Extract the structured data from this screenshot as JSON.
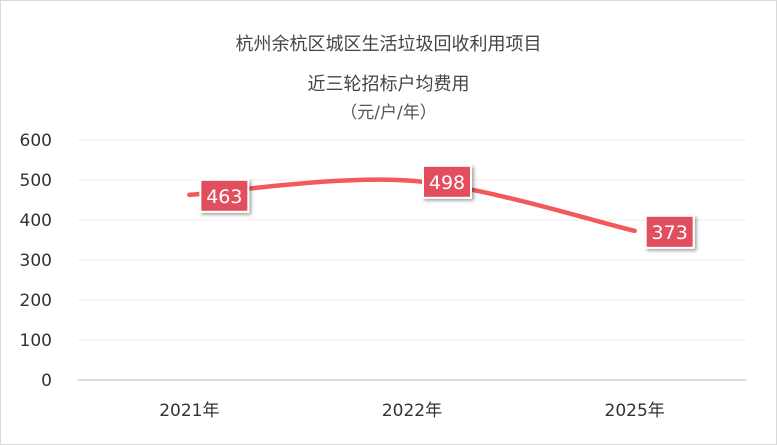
{
  "chart_data": {
    "type": "line",
    "title_lines": [
      "杭州余杭区城区生活垃圾回收利用项目",
      "近三轮招标户均费用",
      "（元/户/年）"
    ],
    "categories": [
      "2021年",
      "2022年",
      "2025年"
    ],
    "values": [
      463,
      498,
      373
    ],
    "data_labels": [
      "463",
      "498",
      "373"
    ],
    "ylim": [
      0,
      600
    ],
    "yticks": [
      0,
      100,
      200,
      300,
      400,
      500,
      600
    ],
    "ytick_labels": [
      "0",
      "100",
      "200",
      "300",
      "400",
      "500",
      "600"
    ],
    "grid": true,
    "legend": "none",
    "smooth": true,
    "colors": {
      "line": "#f25a5a",
      "label_bg": "#e14f5f",
      "label_text": "#ffffff",
      "grid": "#eeeeee",
      "axis": "#d0d0d0",
      "tick_text": "#333333"
    }
  }
}
